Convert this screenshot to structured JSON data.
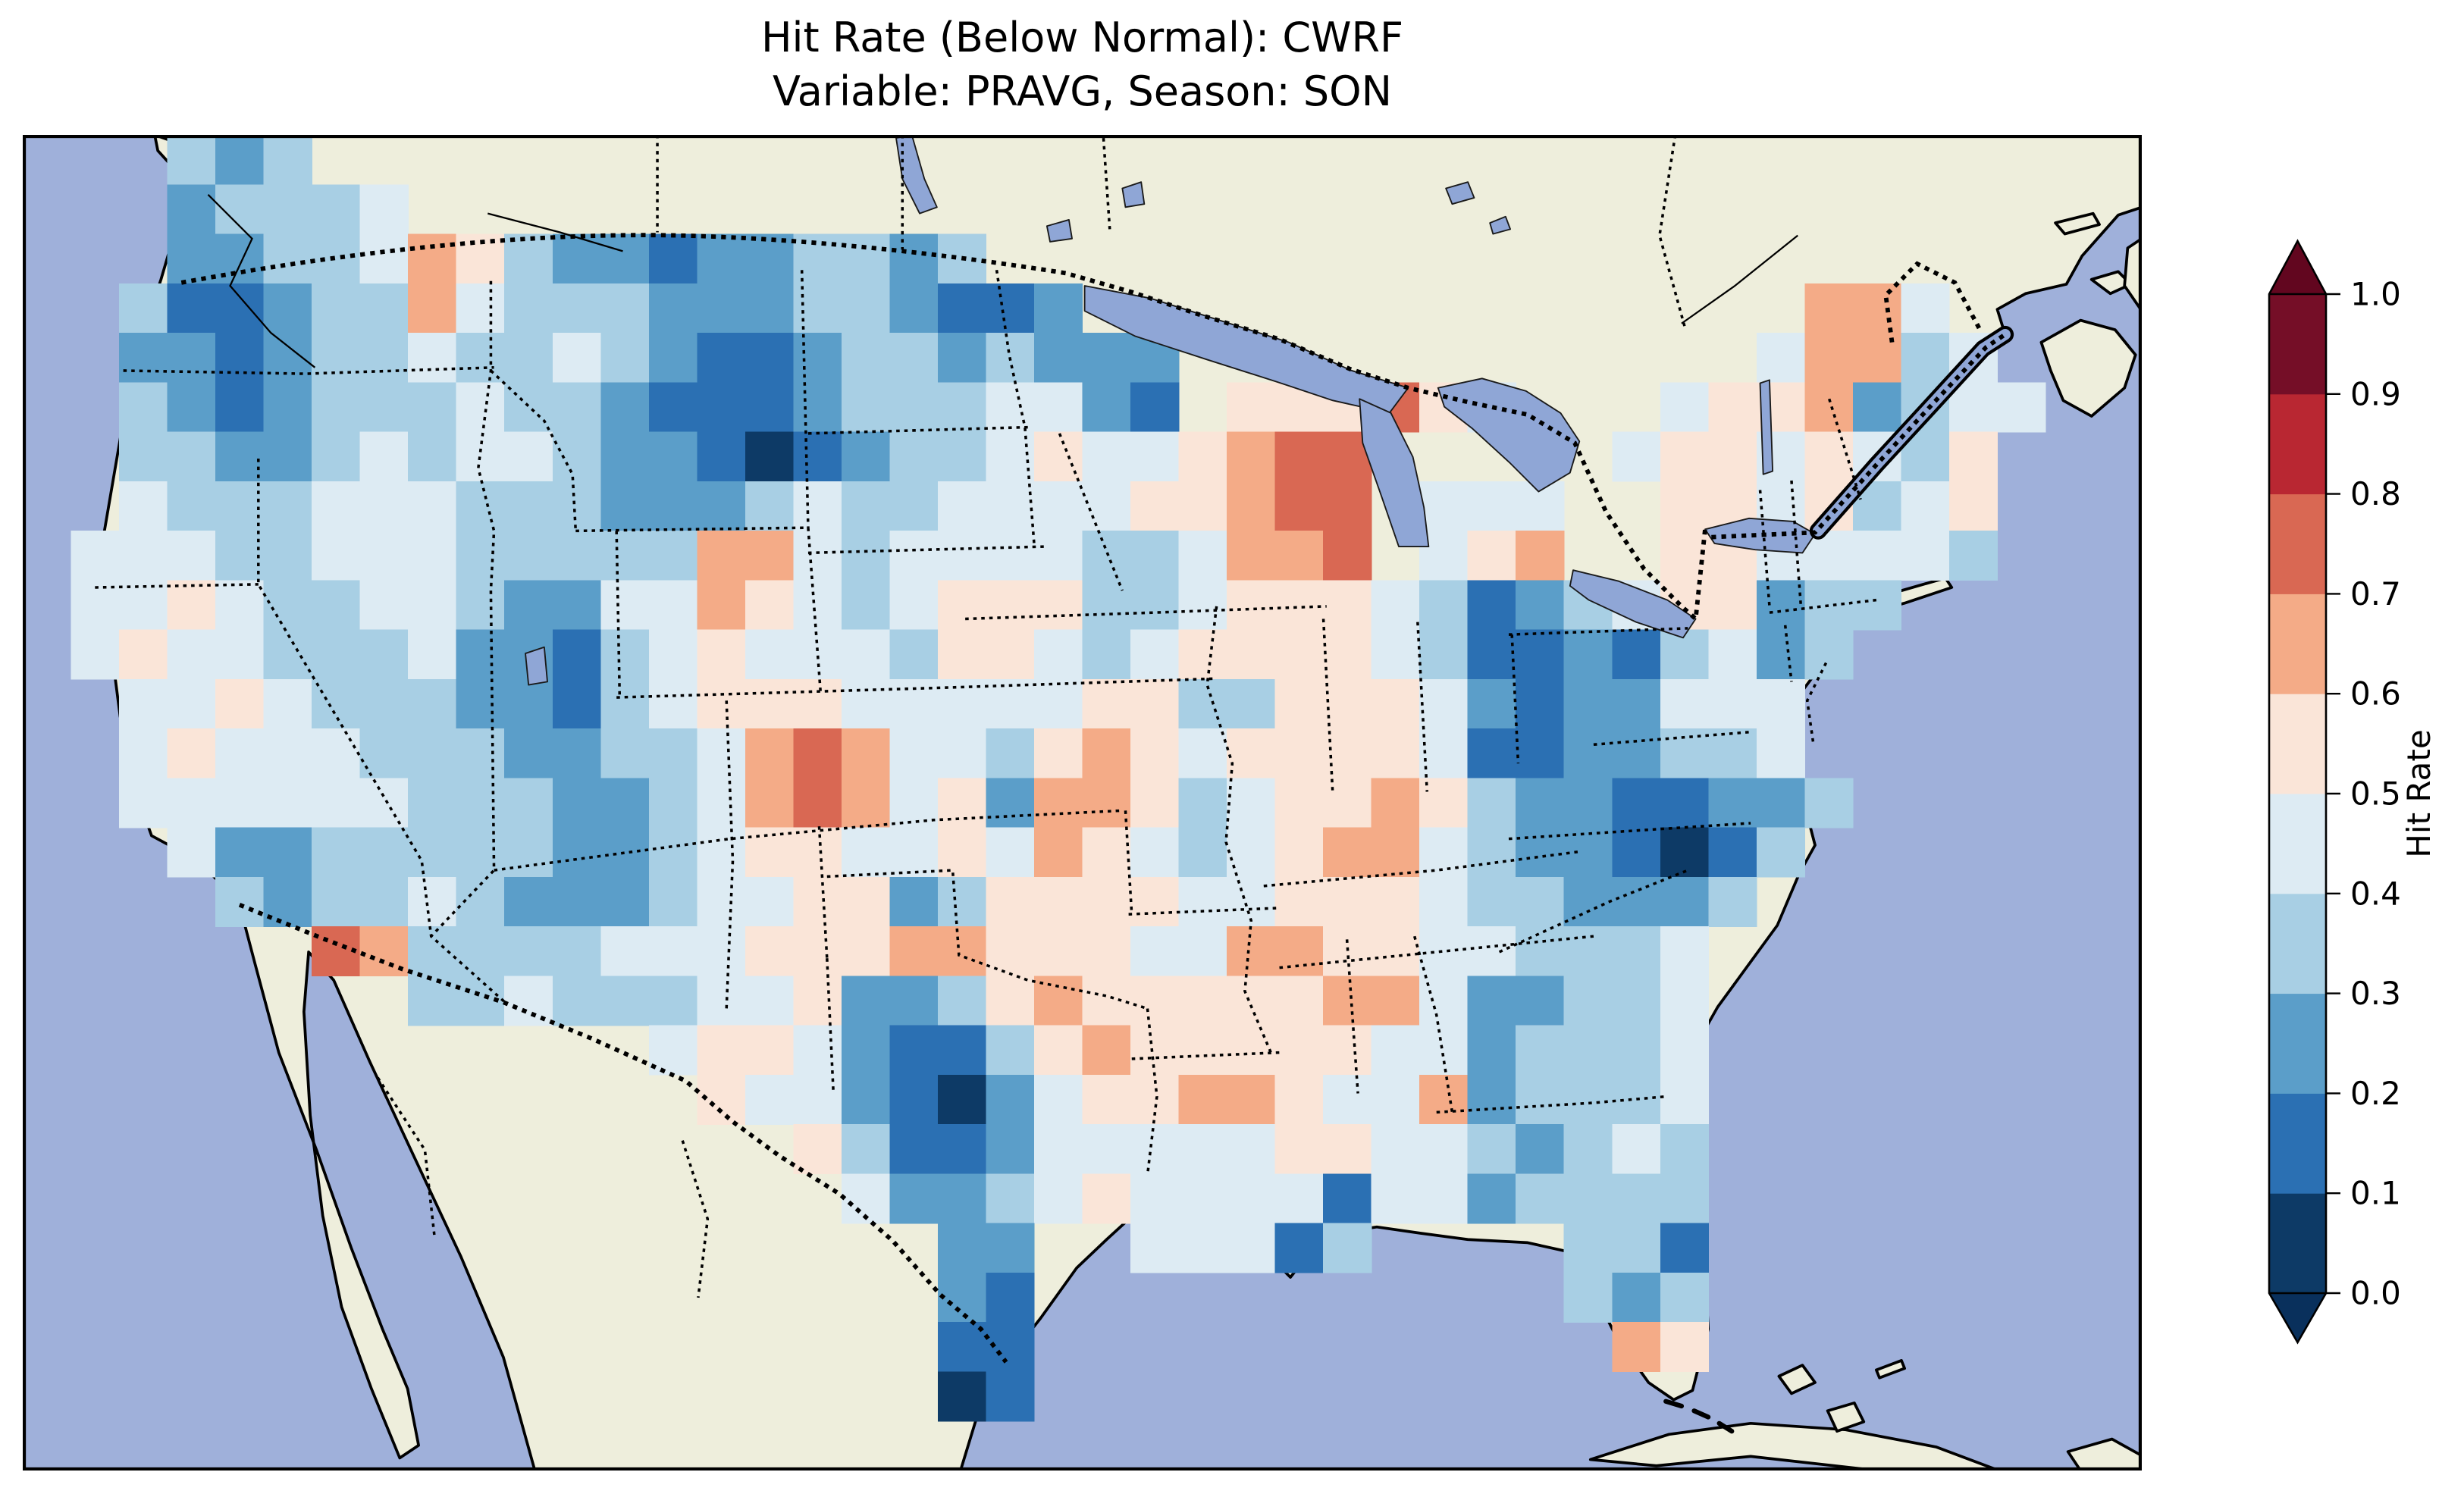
{
  "figure": {
    "title_line1": "Hit Rate (Below Normal): CWRF",
    "title_line2": "Variable: PRAVG, Season: SON"
  },
  "colorbar": {
    "label": "Hit Rate",
    "ticks": [
      "1.0",
      "0.9",
      "0.8",
      "0.7",
      "0.6",
      "0.5",
      "0.4",
      "0.3",
      "0.2",
      "0.1",
      "0.0"
    ],
    "bin_colors": [
      "#0d3a66",
      "#2b70b3",
      "#5b9ec9",
      "#a8cfe4",
      "#ddebf3",
      "#fae5d8",
      "#f4ab87",
      "#d96853",
      "#b92732",
      "#750e27"
    ],
    "under_color": "#09305c",
    "over_color": "#62061f"
  },
  "map_colors": {
    "ocean": "#9fb0da",
    "land": "#eeeedc",
    "lake": "#8fa6d6",
    "coastline": "#000000"
  },
  "chart_data": {
    "type": "heatmap",
    "title": "Hit Rate (Below Normal): CWRF — Variable: PRAVG, Season: SON",
    "model": "CWRF",
    "variable": "PRAVG",
    "season": "SON",
    "metric": "Hit Rate",
    "category": "Below Normal",
    "region": "Contiguous United States (Lambert conformal map)",
    "colormap": "RdBu_r (discrete, 10 bins, extend both)",
    "value_range": [
      0.0,
      1.0
    ],
    "bin_edges": [
      0.0,
      0.1,
      0.2,
      0.3,
      0.4,
      0.5,
      0.6,
      0.7,
      0.8,
      0.9,
      1.0
    ],
    "legend_position": "right vertical colorbar",
    "grid": {
      "n_cols": 44,
      "n_rows": 27,
      "encoding": "one char per cell, left-to-right, top-to-bottom over the map frame; digit k = hit-rate bin [k/10,(k+1)/10]; '.' = no data (outside CONUS); short rows are padded with '.'",
      "rows": [
        "...323",
        "...23334",
        "...22334653221223323",
        "..31123364333222332112...............664",
        "..2212334334321123323222............46634",
        "..3212333433211123334421.555754...45562344",
        "..33223434432210123345445677.....45545435",
        "..43334443332223433444455677.444..5545345",
        ".444334443333366434444334667.456..5544443",
        ".44543344322446543455533455543123455233",
        ".4544333422134544435543455554311213423",
        "..44543332213455544444553355542122444",
        "..45444333223346764435654555541122334",
        "..444444333223467645266534556532211223",
        "...4223333322345544546543456643221013",
        "....32334322234455235555445554332223",
        "......76333344455566555446655443334",
        "........334333445223565555566422334",
        ".............4554211356555554423334",
        "..............544210245566544623334",
        "................5311244444554432343",
        ".................422345444414423333",
        "...................22..44413....331",
        "...................21...........323",
        "...................11............65",
        "...................01",
        ""
      ]
    }
  }
}
